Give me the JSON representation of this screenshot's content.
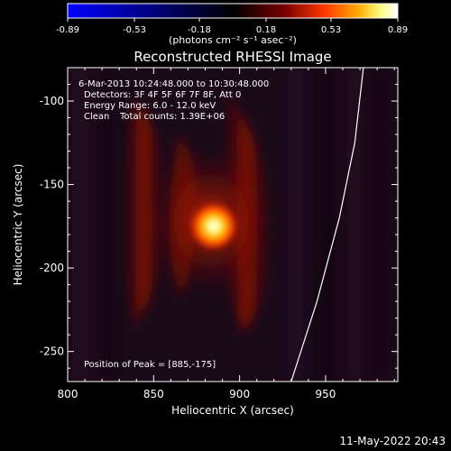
{
  "colorbar": {
    "gradient": [
      "#0000ff",
      "#000000",
      "#7a0000",
      "#ff3a00",
      "#ffaa00",
      "#ffff88",
      "#ffffff"
    ],
    "tick_labels": [
      "-0.89",
      "-0.53",
      "-0.18",
      "0.18",
      "0.53",
      "0.89"
    ],
    "unit_label": "(photons cm⁻² s⁻¹ asec⁻²)"
  },
  "title": "Reconstructed RHESSI Image",
  "annotations": {
    "time_range": "6-Mar-2013 10:24:48.000 to 10:30:48.000",
    "detectors": "Detectors: 3F 4F 5F 6F 7F 8F, Att 0",
    "energy_range": "Energy Range: 6.0 - 12.0 keV",
    "method": "Clean",
    "total_counts": "Total counts: 1.39E+06",
    "peak_position": "Position of Peak = [885,-175]"
  },
  "x_axis": {
    "label": "Heliocentric X (arcsec)",
    "tick_labels": [
      "800",
      "850",
      "900",
      "950"
    ],
    "range": [
      800,
      992
    ]
  },
  "y_axis": {
    "label": "Heliocentric Y (arcsec)",
    "tick_labels": [
      "-100",
      "-150",
      "-200",
      "-250"
    ],
    "range": [
      -268,
      -80
    ]
  },
  "peak": {
    "x": 885,
    "y": -175
  },
  "limb_curve": [
    [
      930,
      -268
    ],
    [
      945,
      -220
    ],
    [
      958,
      -170
    ],
    [
      967,
      -125
    ],
    [
      972,
      -80
    ]
  ],
  "timestamp": "11-May-2022 20:43"
}
